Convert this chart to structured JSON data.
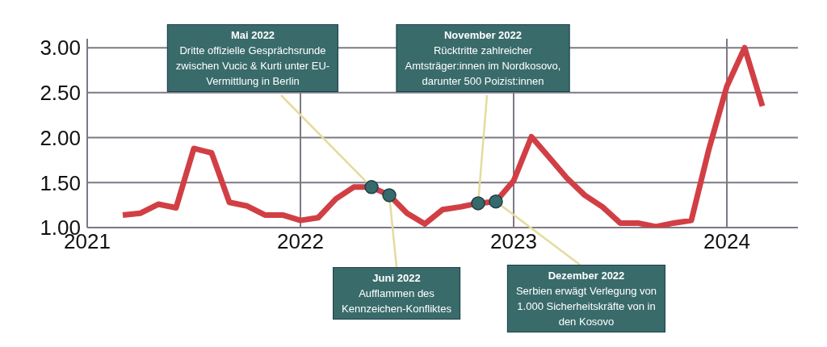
{
  "chart_data": {
    "type": "line",
    "x": [
      "2021-03",
      "2021-04",
      "2021-05",
      "2021-06",
      "2021-07",
      "2021-08",
      "2021-09",
      "2021-10",
      "2021-11",
      "2021-12",
      "2022-01",
      "2022-02",
      "2022-03",
      "2022-04",
      "2022-05",
      "2022-06",
      "2022-07",
      "2022-08",
      "2022-09",
      "2022-10",
      "2022-11",
      "2022-12",
      "2023-01",
      "2023-02",
      "2023-03",
      "2023-04",
      "2023-05",
      "2023-06",
      "2023-07",
      "2023-08",
      "2023-09",
      "2023-10",
      "2023-11",
      "2023-12",
      "2024-01",
      "2024-02",
      "2024-03"
    ],
    "series": [
      {
        "color": "#d13f45",
        "values": [
          1.14,
          1.16,
          1.26,
          1.22,
          1.88,
          1.83,
          1.28,
          1.24,
          1.14,
          1.14,
          1.08,
          1.11,
          1.32,
          1.45,
          1.45,
          1.36,
          1.16,
          1.04,
          1.2,
          1.23,
          1.27,
          1.29,
          1.52,
          2.01,
          1.78,
          1.55,
          1.36,
          1.23,
          1.05,
          1.05,
          1.01,
          1.05,
          1.08,
          1.88,
          2.57,
          3.0,
          2.35
        ]
      }
    ],
    "xlim": [
      "2021-01",
      "2024-05"
    ],
    "xticks": [
      "2021",
      "2022",
      "2023",
      "2024"
    ],
    "ylim": [
      1,
      3.1
    ],
    "yticks": [
      {
        "value": 1,
        "label": "1.00"
      },
      {
        "value": 1.5,
        "label": "1.50"
      },
      {
        "value": 2,
        "label": "2.00"
      },
      {
        "value": 2.5,
        "label": "2.50"
      },
      {
        "value": 3,
        "label": "3.00"
      }
    ],
    "grid": true,
    "line_style": "solid",
    "annotations": [
      {
        "text": "Mai 2022\nDritte offizielle Gesprächsrunde\nzwischen Vucic & Kurti unter EU-\nVermittlung in Berlin",
        "x": "2022-05",
        "y": 1.45
      },
      {
        "text": "November 2022\nRücktritte zahlreicher\nAmtsträger:innen im Nordkosovo,\ndarunter 500 Poizist:innen",
        "x": "2022-11",
        "y": 1.27
      },
      {
        "text": "Juni 2022\nAufflammen des\nKennzeichen-Konfliktes",
        "x": "2022-06",
        "y": 1.36
      },
      {
        "text": "Dezember 2022\nSerbien erwägt Verlegung von\n1.000 Sicherheitskräfte von in\nden Kosovo",
        "x": "2022-12",
        "y": 1.29
      }
    ]
  }
}
